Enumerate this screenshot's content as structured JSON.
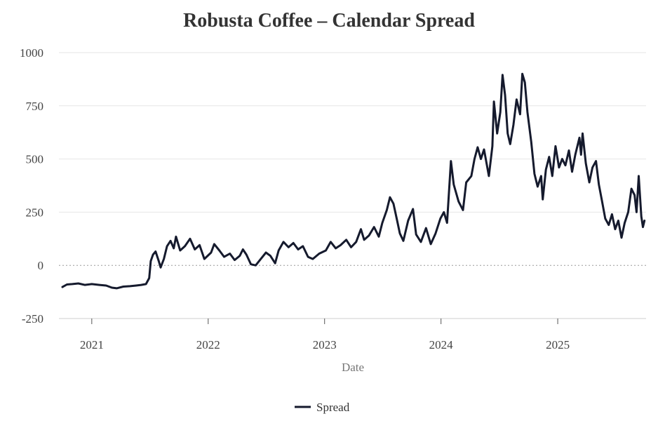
{
  "chart_data": {
    "type": "line",
    "title": "Robusta Coffee – Calendar Spread",
    "xlabel": "Date",
    "ylabel": "",
    "ylim": [
      -250,
      1000
    ],
    "xlim": [
      "2020-09-20",
      "2025-10-05"
    ],
    "y_ticks": [
      1000,
      750,
      500,
      250,
      0,
      -250
    ],
    "x_ticks": [
      {
        "label": "2021",
        "date": "2021-01-01"
      },
      {
        "label": "2022",
        "date": "2022-01-01"
      },
      {
        "label": "2023",
        "date": "2023-01-01"
      },
      {
        "label": "2024",
        "date": "2024-01-01"
      },
      {
        "label": "2025",
        "date": "2025-01-01"
      }
    ],
    "zero_line": "dotted",
    "grid": "horizontal",
    "legend_position": "bottom-center",
    "series": [
      {
        "name": "Spread",
        "color": "#151a2d",
        "points": [
          [
            "2020-10-01",
            -102
          ],
          [
            "2020-10-15",
            -90
          ],
          [
            "2020-11-01",
            -88
          ],
          [
            "2020-11-20",
            -85
          ],
          [
            "2020-12-10",
            -92
          ],
          [
            "2021-01-01",
            -88
          ],
          [
            "2021-01-25",
            -92
          ],
          [
            "2021-02-15",
            -95
          ],
          [
            "2021-03-05",
            -105
          ],
          [
            "2021-03-20",
            -108
          ],
          [
            "2021-04-10",
            -100
          ],
          [
            "2021-05-01",
            -98
          ],
          [
            "2021-05-20",
            -95
          ],
          [
            "2021-06-05",
            -92
          ],
          [
            "2021-06-20",
            -88
          ],
          [
            "2021-06-30",
            -60
          ],
          [
            "2021-07-05",
            20
          ],
          [
            "2021-07-12",
            50
          ],
          [
            "2021-07-20",
            65
          ],
          [
            "2021-07-30",
            20
          ],
          [
            "2021-08-05",
            -10
          ],
          [
            "2021-08-15",
            30
          ],
          [
            "2021-08-25",
            90
          ],
          [
            "2021-09-05",
            115
          ],
          [
            "2021-09-15",
            80
          ],
          [
            "2021-09-22",
            135
          ],
          [
            "2021-10-05",
            70
          ],
          [
            "2021-10-20",
            90
          ],
          [
            "2021-11-05",
            125
          ],
          [
            "2021-11-20",
            75
          ],
          [
            "2021-12-05",
            95
          ],
          [
            "2021-12-20",
            30
          ],
          [
            "2022-01-10",
            60
          ],
          [
            "2022-01-20",
            100
          ],
          [
            "2022-02-05",
            70
          ],
          [
            "2022-02-20",
            40
          ],
          [
            "2022-03-10",
            55
          ],
          [
            "2022-03-25",
            25
          ],
          [
            "2022-04-10",
            45
          ],
          [
            "2022-04-20",
            75
          ],
          [
            "2022-05-01",
            50
          ],
          [
            "2022-05-15",
            5
          ],
          [
            "2022-05-30",
            0
          ],
          [
            "2022-06-15",
            30
          ],
          [
            "2022-07-01",
            60
          ],
          [
            "2022-07-15",
            45
          ],
          [
            "2022-07-30",
            10
          ],
          [
            "2022-08-10",
            70
          ],
          [
            "2022-08-25",
            110
          ],
          [
            "2022-09-10",
            85
          ],
          [
            "2022-09-25",
            105
          ],
          [
            "2022-10-10",
            75
          ],
          [
            "2022-10-25",
            90
          ],
          [
            "2022-11-10",
            40
          ],
          [
            "2022-11-25",
            30
          ],
          [
            "2022-12-15",
            55
          ],
          [
            "2023-01-05",
            70
          ],
          [
            "2023-01-20",
            110
          ],
          [
            "2023-02-05",
            80
          ],
          [
            "2023-02-20",
            95
          ],
          [
            "2023-03-10",
            120
          ],
          [
            "2023-03-25",
            85
          ],
          [
            "2023-04-10",
            110
          ],
          [
            "2023-04-25",
            170
          ],
          [
            "2023-05-05",
            120
          ],
          [
            "2023-05-20",
            140
          ],
          [
            "2023-06-05",
            180
          ],
          [
            "2023-06-20",
            135
          ],
          [
            "2023-07-01",
            200
          ],
          [
            "2023-07-15",
            260
          ],
          [
            "2023-07-25",
            320
          ],
          [
            "2023-08-05",
            290
          ],
          [
            "2023-08-15",
            220
          ],
          [
            "2023-08-25",
            150
          ],
          [
            "2023-09-05",
            115
          ],
          [
            "2023-09-20",
            210
          ],
          [
            "2023-10-05",
            265
          ],
          [
            "2023-10-15",
            145
          ],
          [
            "2023-10-30",
            110
          ],
          [
            "2023-11-15",
            175
          ],
          [
            "2023-11-30",
            100
          ],
          [
            "2023-12-15",
            150
          ],
          [
            "2023-12-30",
            220
          ],
          [
            "2024-01-10",
            250
          ],
          [
            "2024-01-20",
            200
          ],
          [
            "2024-02-01",
            490
          ],
          [
            "2024-02-10",
            380
          ],
          [
            "2024-02-25",
            300
          ],
          [
            "2024-03-10",
            260
          ],
          [
            "2024-03-20",
            390
          ],
          [
            "2024-04-05",
            420
          ],
          [
            "2024-04-15",
            500
          ],
          [
            "2024-04-25",
            555
          ],
          [
            "2024-05-05",
            500
          ],
          [
            "2024-05-15",
            545
          ],
          [
            "2024-05-30",
            420
          ],
          [
            "2024-06-10",
            560
          ],
          [
            "2024-06-15",
            770
          ],
          [
            "2024-06-25",
            620
          ],
          [
            "2024-07-05",
            720
          ],
          [
            "2024-07-12",
            895
          ],
          [
            "2024-07-20",
            800
          ],
          [
            "2024-07-28",
            620
          ],
          [
            "2024-08-05",
            570
          ],
          [
            "2024-08-15",
            660
          ],
          [
            "2024-08-25",
            780
          ],
          [
            "2024-09-05",
            710
          ],
          [
            "2024-09-12",
            900
          ],
          [
            "2024-09-20",
            860
          ],
          [
            "2024-09-28",
            720
          ],
          [
            "2024-10-10",
            580
          ],
          [
            "2024-10-20",
            430
          ],
          [
            "2024-10-30",
            370
          ],
          [
            "2024-11-10",
            420
          ],
          [
            "2024-11-15",
            310
          ],
          [
            "2024-11-25",
            450
          ],
          [
            "2024-12-05",
            510
          ],
          [
            "2024-12-15",
            420
          ],
          [
            "2024-12-25",
            560
          ],
          [
            "2025-01-05",
            460
          ],
          [
            "2025-01-15",
            500
          ],
          [
            "2025-01-25",
            470
          ],
          [
            "2025-02-05",
            540
          ],
          [
            "2025-02-15",
            440
          ],
          [
            "2025-02-25",
            520
          ],
          [
            "2025-03-10",
            600
          ],
          [
            "2025-03-15",
            520
          ],
          [
            "2025-03-20",
            620
          ],
          [
            "2025-03-30",
            480
          ],
          [
            "2025-04-10",
            390
          ],
          [
            "2025-04-20",
            460
          ],
          [
            "2025-05-01",
            490
          ],
          [
            "2025-05-10",
            380
          ],
          [
            "2025-05-20",
            300
          ],
          [
            "2025-05-30",
            220
          ],
          [
            "2025-06-10",
            190
          ],
          [
            "2025-06-20",
            240
          ],
          [
            "2025-06-30",
            170
          ],
          [
            "2025-07-10",
            210
          ],
          [
            "2025-07-20",
            130
          ],
          [
            "2025-07-30",
            200
          ],
          [
            "2025-08-10",
            250
          ],
          [
            "2025-08-20",
            360
          ],
          [
            "2025-08-30",
            330
          ],
          [
            "2025-09-05",
            250
          ],
          [
            "2025-09-12",
            420
          ],
          [
            "2025-09-20",
            230
          ],
          [
            "2025-09-25",
            180
          ],
          [
            "2025-09-30",
            210
          ]
        ]
      }
    ]
  }
}
